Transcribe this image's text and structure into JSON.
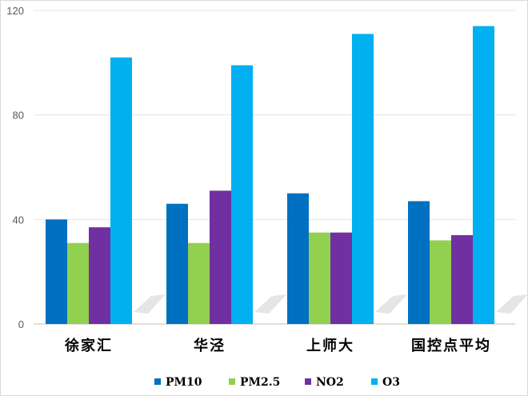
{
  "chart_data": {
    "type": "bar",
    "categories": [
      "徐家汇",
      "华泾",
      "上师大",
      "国控点平均"
    ],
    "series": [
      {
        "name": "PM10",
        "values": [
          40,
          46,
          50,
          47
        ],
        "color": "#0070c0"
      },
      {
        "name": "PM2.5",
        "values": [
          31,
          31,
          35,
          32
        ],
        "color": "#92d050"
      },
      {
        "name": "NO2",
        "values": [
          37,
          51,
          35,
          34
        ],
        "color": "#7030a0"
      },
      {
        "name": "O3",
        "values": [
          102,
          99,
          111,
          114
        ],
        "color": "#00b0f0"
      }
    ],
    "yticks": [
      0,
      40,
      80,
      120
    ],
    "ylim": [
      0,
      120
    ],
    "grid": true,
    "legend": "bottom",
    "title": "",
    "xlabel": "",
    "ylabel": ""
  }
}
